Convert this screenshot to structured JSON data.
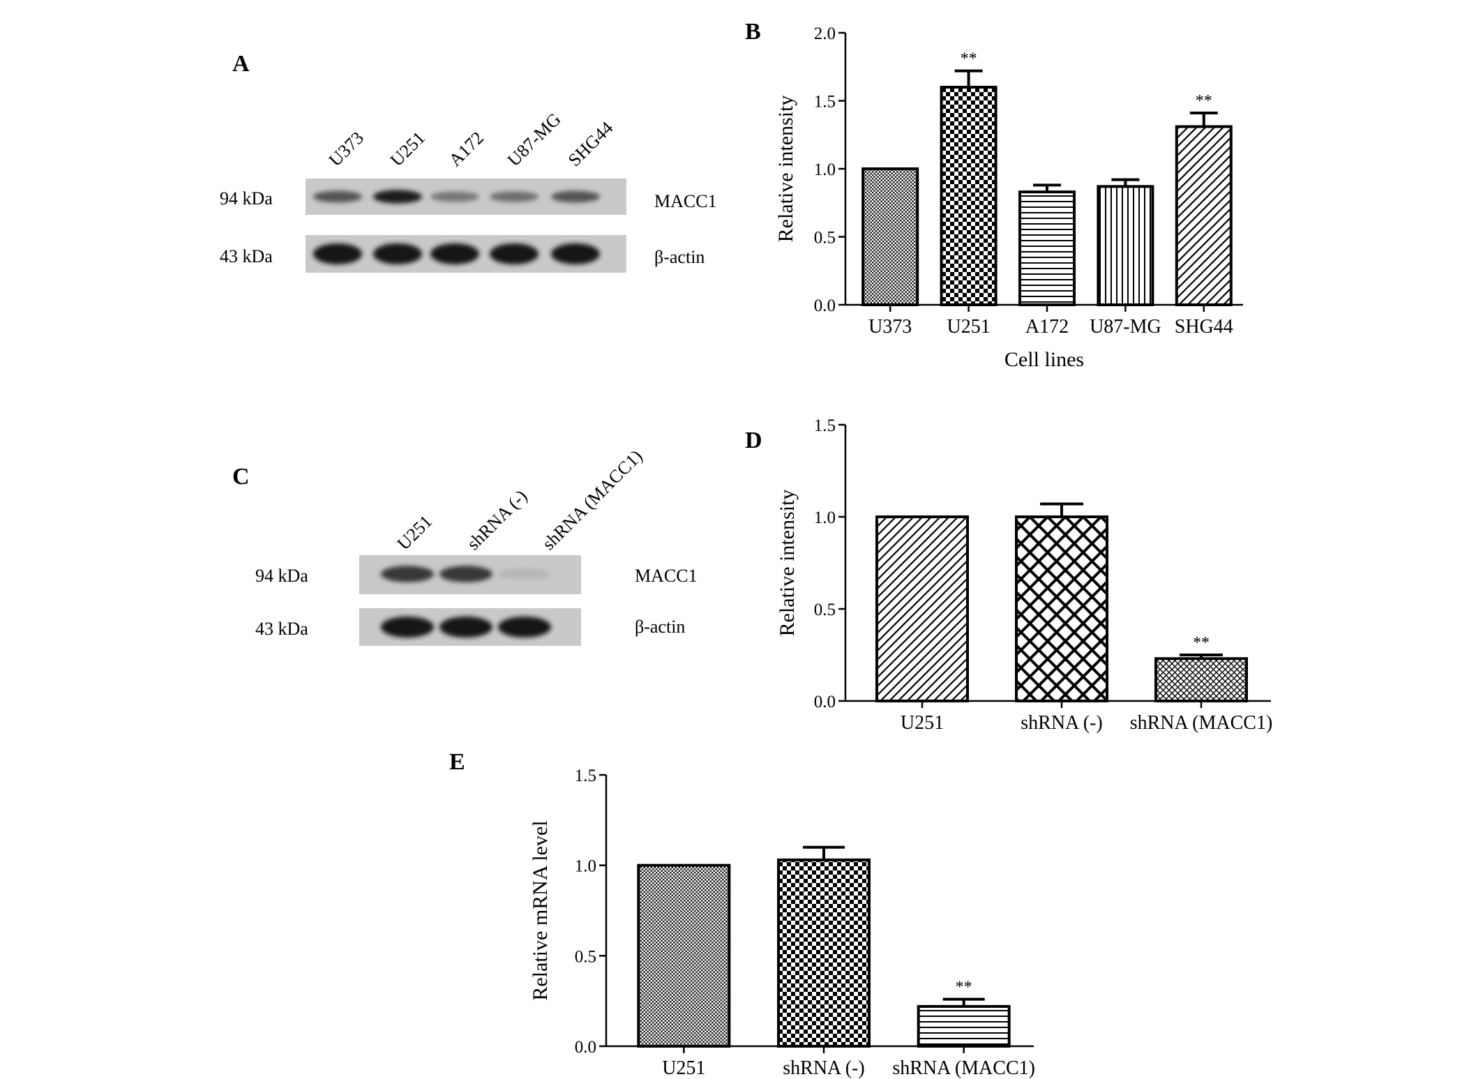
{
  "panels": {
    "A": {
      "letter": "A",
      "lane_labels": [
        "U373",
        "U251",
        "A172",
        "U87-MG",
        "SHG44"
      ],
      "rows": [
        {
          "kda": "94 kDa",
          "protein": "MACC1",
          "intensity": [
            0.65,
            0.95,
            0.45,
            0.5,
            0.65
          ]
        },
        {
          "kda": "43 kDa",
          "protein": "β-actin",
          "intensity": [
            1,
            1,
            1,
            1,
            1
          ]
        }
      ]
    },
    "C": {
      "letter": "C",
      "lane_labels": [
        "U251",
        "shRNA (-)",
        "shRNA (MACC1)"
      ],
      "rows": [
        {
          "kda": "94 kDa",
          "protein": "MACC1",
          "intensity": [
            0.8,
            0.8,
            0.1
          ]
        },
        {
          "kda": "43 kDa",
          "protein": "β-actin",
          "intensity": [
            1,
            1,
            1
          ]
        }
      ]
    }
  },
  "chart_data": [
    {
      "panel": "B",
      "type": "bar",
      "title": "",
      "xlabel": "Cell lines",
      "ylabel": "Relative intensity",
      "ylim": [
        0,
        2.0
      ],
      "yticks": [
        "0.0",
        "0.5",
        "1.0",
        "1.5",
        "2.0"
      ],
      "categories": [
        "U373",
        "U251",
        "A172",
        "U87-MG",
        "SHG44"
      ],
      "values": [
        1.0,
        1.6,
        0.83,
        0.87,
        1.31
      ],
      "errors": [
        0,
        0.12,
        0.05,
        0.05,
        0.1
      ],
      "annotations": [
        "",
        "**",
        "",
        "",
        "**"
      ],
      "patterns": [
        "fine-grid",
        "checker",
        "hlines",
        "vlines",
        "diag"
      ]
    },
    {
      "panel": "D",
      "type": "bar",
      "title": "",
      "xlabel": "",
      "ylabel": "Relative intensity",
      "ylim": [
        0,
        1.5
      ],
      "yticks": [
        "0.0",
        "0.5",
        "1.0",
        "1.5"
      ],
      "categories": [
        "U251",
        "shRNA (-)",
        "shRNA (MACC1)"
      ],
      "values": [
        1.0,
        1.0,
        0.23
      ],
      "errors": [
        0,
        0.07,
        0.02
      ],
      "annotations": [
        "",
        "",
        "**"
      ],
      "patterns": [
        "diag",
        "crosshatch",
        "fine-cross"
      ]
    },
    {
      "panel": "E",
      "type": "bar",
      "title": "",
      "xlabel": "",
      "ylabel": "Relative mRNA level",
      "ylim": [
        0,
        1.5
      ],
      "yticks": [
        "0.0",
        "0.5",
        "1.0",
        "1.5"
      ],
      "categories": [
        "U251",
        "shRNA (-)",
        "shRNA (MACC1)"
      ],
      "values": [
        1.0,
        1.03,
        0.22
      ],
      "errors": [
        0,
        0.07,
        0.04
      ],
      "annotations": [
        "",
        "",
        "**"
      ],
      "patterns": [
        "fine-grid",
        "checker",
        "hlines"
      ]
    }
  ]
}
